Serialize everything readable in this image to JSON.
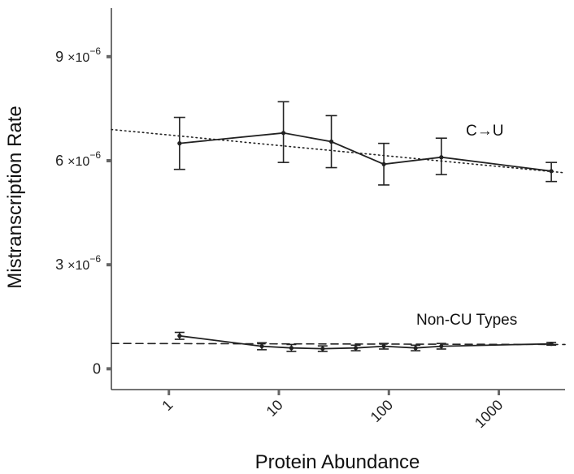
{
  "chart_data": {
    "type": "line",
    "title": "",
    "xlabel": "Protein Abundance",
    "ylabel": "Mistranscription Rate",
    "xscale": "log",
    "xlim": [
      0.3,
      4000
    ],
    "ylim": [
      -6e-07,
      1.04e-05
    ],
    "x_ticks": [
      1,
      10,
      100,
      1000
    ],
    "x_tick_labels": [
      "1",
      "10",
      "100",
      "1000"
    ],
    "y_ticks": [
      0,
      3e-06,
      6e-06,
      9e-06
    ],
    "y_tick_labels": [
      {
        "mantissa": "0",
        "exponent": ""
      },
      {
        "mantissa": "3",
        "exponent": "−6"
      },
      {
        "mantissa": "6",
        "exponent": "−6"
      },
      {
        "mantissa": "9",
        "exponent": "−6"
      }
    ],
    "grid": false,
    "series": [
      {
        "name": "C→U",
        "label_text": "C→U",
        "style": "solid",
        "x": [
          1.25,
          11,
          30,
          90,
          300,
          3000
        ],
        "y": [
          6.5e-06,
          6.8e-06,
          6.55e-06,
          5.9e-06,
          6.1e-06,
          5.7e-06
        ],
        "err_low": [
          5.75e-06,
          5.95e-06,
          5.8e-06,
          5.3e-06,
          5.6e-06,
          5.4e-06
        ],
        "err_high": [
          7.25e-06,
          7.7e-06,
          7.3e-06,
          6.5e-06,
          6.65e-06,
          5.95e-06
        ],
        "trend": {
          "style": "dotted",
          "x": [
            0.3,
            4000
          ],
          "y": [
            6.9e-06,
            5.65e-06
          ]
        }
      },
      {
        "name": "Non-CU Types",
        "label_text": "Non-CU Types",
        "style": "solid",
        "x": [
          1.25,
          7,
          13,
          25,
          50,
          90,
          175,
          300,
          3000
        ],
        "y": [
          9.5e-07,
          6.5e-07,
          6e-07,
          5.8e-07,
          6e-07,
          6.5e-07,
          6e-07,
          6.5e-07,
          7.2e-07
        ],
        "err_low": [
          8.5e-07,
          5.5e-07,
          5e-07,
          5e-07,
          5.2e-07,
          5.7e-07,
          5.2e-07,
          5.7e-07,
          6.8e-07
        ],
        "err_high": [
          1.05e-06,
          7.5e-07,
          7e-07,
          6.6e-07,
          6.8e-07,
          7.3e-07,
          6.8e-07,
          7.3e-07,
          7.6e-07
        ],
        "trend": {
          "style": "dashed",
          "x": [
            0.3,
            4000
          ],
          "y": [
            7.3e-07,
            7e-07
          ]
        }
      }
    ],
    "colors": {
      "line": "#222222",
      "axis": "#222222",
      "tick": "#666666"
    }
  }
}
